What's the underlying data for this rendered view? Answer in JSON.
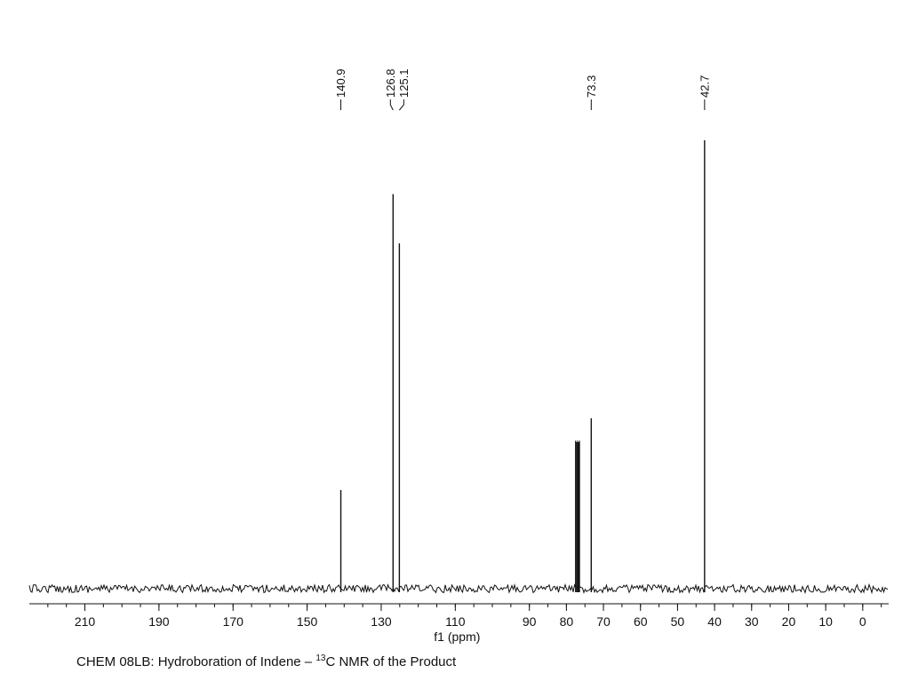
{
  "chart_data": {
    "type": "line",
    "title": "",
    "xlabel": "f1 (ppm)",
    "ylabel": "",
    "x_reversed": true,
    "xlim": [
      225,
      -7
    ],
    "ylim": [
      0,
      1
    ],
    "x_ticks": [
      210,
      190,
      170,
      150,
      130,
      110,
      90,
      80,
      70,
      60,
      50,
      40,
      30,
      20,
      10,
      0
    ],
    "grid": false,
    "peak_labels": [
      "140.9",
      "126.8",
      "125.1",
      "73.3",
      "42.7"
    ],
    "series": [
      {
        "x": [
          140.9,
          126.8,
          125.1,
          77.0,
          73.3,
          42.7
        ],
        "values": [
          0.22,
          0.88,
          0.77,
          0.33,
          0.38,
          1.0
        ]
      }
    ],
    "colors": {
      "trace": "#111111",
      "axis": "#111111"
    }
  },
  "caption": {
    "prefix": "CHEM 08LB:  Hydroboration of Indene – ",
    "isotope": "13",
    "suffix": "C NMR of the Product"
  }
}
